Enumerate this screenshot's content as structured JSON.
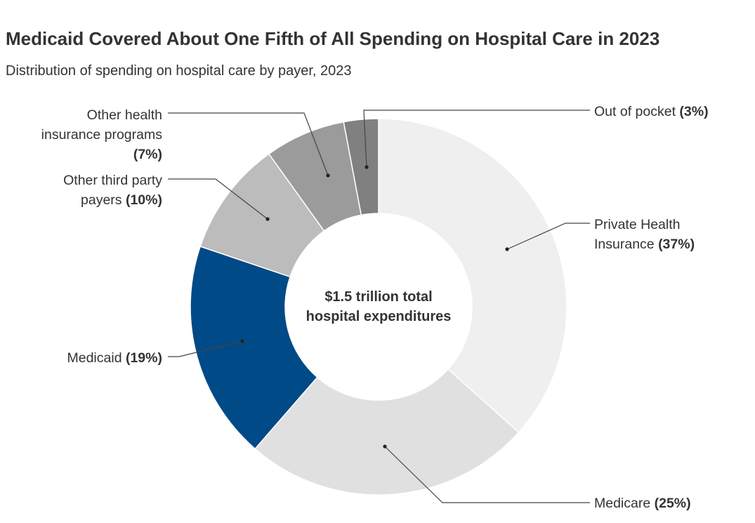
{
  "chart_data": {
    "type": "pie",
    "title": "Medicaid Covered About One Fifth of All Spending on Hospital Care in 2023",
    "subtitle": "Distribution of spending on hospital care by payer, 2023",
    "center_label": [
      "$1.5 trillion total",
      "hospital expenditures"
    ],
    "slices": [
      {
        "name": "Private Health Insurance",
        "label_lines": [
          "Private Health",
          "Insurance"
        ],
        "pct_text": "(37%)",
        "value": 37,
        "color": "#efefef"
      },
      {
        "name": "Medicare",
        "label_lines": [
          "Medicare"
        ],
        "pct_text": "(25%)",
        "value": 25,
        "color": "#e0e0e0"
      },
      {
        "name": "Medicaid",
        "label_lines": [
          "Medicaid"
        ],
        "pct_text": "(19%)",
        "value": 19,
        "color": "#004a87"
      },
      {
        "name": "Other third party payers",
        "label_lines": [
          "Other third party",
          "payers"
        ],
        "pct_text": "(10%)",
        "value": 10,
        "color": "#bcbcbc"
      },
      {
        "name": "Other health insurance programs",
        "label_lines": [
          "Other health",
          "insurance programs",
          ""
        ],
        "pct_text": "(7%)",
        "value": 7,
        "color": "#9b9b9b"
      },
      {
        "name": "Out of pocket",
        "label_lines": [
          "Out of pocket"
        ],
        "pct_text": "(3%)",
        "value": 3,
        "color": "#808080"
      }
    ]
  }
}
